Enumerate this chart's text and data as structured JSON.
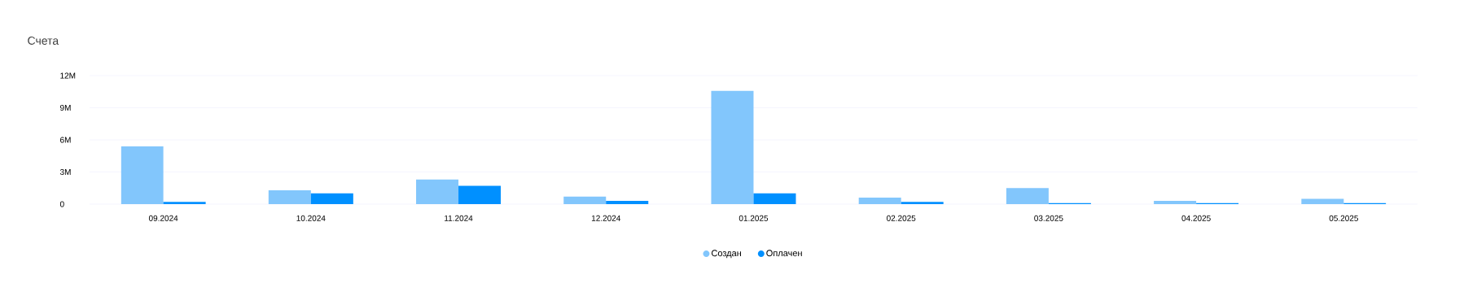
{
  "chart_data": {
    "type": "bar",
    "title": "Счета",
    "categories": [
      "09.2024",
      "10.2024",
      "11.2024",
      "12.2024",
      "01.2025",
      "02.2025",
      "03.2025",
      "04.2025",
      "05.2025"
    ],
    "series": [
      {
        "name": "Создан",
        "color": "#82c6fc",
        "values": [
          5400000,
          1300000,
          2300000,
          700000,
          10600000,
          600000,
          1500000,
          300000,
          500000
        ]
      },
      {
        "name": "Оплачен",
        "color": "#0090ff",
        "values": [
          200000,
          1000000,
          1700000,
          300000,
          1000000,
          200000,
          100000,
          100000,
          100000
        ]
      }
    ],
    "ylim": [
      0,
      12000000
    ],
    "yticks": [
      0,
      {
        "value": 3000000,
        "label": "3M"
      },
      {
        "value": 6000000,
        "label": "6M"
      },
      {
        "value": 9000000,
        "label": "9M"
      },
      {
        "value": 12000000,
        "label": "12M"
      }
    ],
    "grid": "y",
    "legend": "bottom"
  }
}
